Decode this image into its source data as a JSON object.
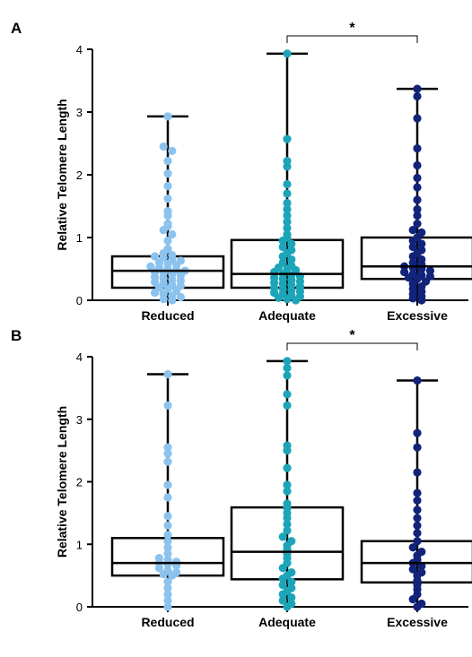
{
  "chart_data": [
    {
      "type": "box-dot",
      "panel_label": "A",
      "ylabel": "Relative Telomere Length",
      "ylim": [
        0,
        4
      ],
      "yticks": [
        "0",
        "1",
        "2",
        "3",
        "4"
      ],
      "categories": [
        "Reduced",
        "Adequate",
        "Excessive"
      ],
      "colors": [
        "#8cc3ee",
        "#1ca5b8",
        "#12237a"
      ],
      "boxes": [
        {
          "min": 0.0,
          "q1": 0.2,
          "median": 0.47,
          "q3": 0.7,
          "max": 2.93
        },
        {
          "min": 0.0,
          "q1": 0.2,
          "median": 0.42,
          "q3": 0.96,
          "max": 3.93
        },
        {
          "min": 0.0,
          "q1": 0.34,
          "median": 0.54,
          "q3": 1.0,
          "max": 3.37
        }
      ],
      "points": [
        [
          2.93,
          2.45,
          2.38,
          2.22,
          2.02,
          1.82,
          1.62,
          1.42,
          1.35,
          1.22,
          1.18,
          1.12,
          1.05,
          0.95,
          0.82,
          0.75,
          0.72,
          0.7,
          0.68,
          0.65,
          0.63,
          0.6,
          0.58,
          0.56,
          0.54,
          0.52,
          0.5,
          0.48,
          0.47,
          0.45,
          0.43,
          0.41,
          0.39,
          0.37,
          0.35,
          0.33,
          0.31,
          0.29,
          0.27,
          0.25,
          0.23,
          0.2,
          0.18,
          0.15,
          0.12,
          0.1,
          0.07,
          0.05,
          0.02,
          0.0
        ],
        [
          3.93,
          2.57,
          2.22,
          2.13,
          1.85,
          1.7,
          1.55,
          1.45,
          1.35,
          1.25,
          1.15,
          1.05,
          1.0,
          0.95,
          0.9,
          0.85,
          0.8,
          0.75,
          0.7,
          0.65,
          0.6,
          0.55,
          0.52,
          0.5,
          0.48,
          0.45,
          0.42,
          0.4,
          0.38,
          0.36,
          0.34,
          0.32,
          0.3,
          0.28,
          0.26,
          0.24,
          0.22,
          0.2,
          0.18,
          0.16,
          0.14,
          0.12,
          0.1,
          0.08,
          0.06,
          0.04,
          0.02,
          0.0
        ],
        [
          3.37,
          3.25,
          2.9,
          2.42,
          2.15,
          1.95,
          1.8,
          1.6,
          1.45,
          1.35,
          1.22,
          1.12,
          1.08,
          1.0,
          0.95,
          0.9,
          0.85,
          0.8,
          0.75,
          0.7,
          0.65,
          0.6,
          0.57,
          0.54,
          0.52,
          0.5,
          0.47,
          0.45,
          0.42,
          0.4,
          0.38,
          0.36,
          0.34,
          0.3,
          0.26,
          0.22,
          0.18,
          0.14,
          0.1,
          0.06,
          0.03,
          0.0
        ]
      ],
      "significance": {
        "from": 1,
        "to": 2,
        "label": "*"
      }
    },
    {
      "type": "box-dot",
      "panel_label": "B",
      "ylabel": "Relative Telomere Length",
      "ylim": [
        0,
        4
      ],
      "yticks": [
        "0",
        "1",
        "2",
        "3",
        "4"
      ],
      "categories": [
        "Reduced",
        "Adequate",
        "Excessive"
      ],
      "colors": [
        "#8cc3ee",
        "#1ca5b8",
        "#12237a"
      ],
      "boxes": [
        {
          "min": 0.0,
          "q1": 0.5,
          "median": 0.7,
          "q3": 1.1,
          "max": 3.72
        },
        {
          "min": 0.0,
          "q1": 0.44,
          "median": 0.88,
          "q3": 1.59,
          "max": 3.93
        },
        {
          "min": 0.0,
          "q1": 0.39,
          "median": 0.7,
          "q3": 1.05,
          "max": 3.62
        }
      ],
      "points": [
        [
          3.72,
          3.22,
          2.55,
          2.45,
          2.32,
          1.95,
          1.75,
          1.45,
          1.3,
          1.15,
          1.05,
          0.95,
          0.85,
          0.78,
          0.75,
          0.72,
          0.7,
          0.68,
          0.66,
          0.62,
          0.58,
          0.55,
          0.52,
          0.5,
          0.4,
          0.3,
          0.2,
          0.1,
          0.0
        ],
        [
          3.93,
          3.82,
          3.7,
          3.4,
          3.22,
          2.58,
          2.5,
          2.22,
          1.95,
          1.85,
          1.65,
          1.58,
          1.5,
          1.42,
          1.32,
          1.22,
          1.12,
          1.05,
          0.98,
          0.92,
          0.85,
          0.78,
          0.7,
          0.62,
          0.55,
          0.5,
          0.45,
          0.4,
          0.35,
          0.3,
          0.25,
          0.2,
          0.15,
          0.1,
          0.05,
          0.0
        ],
        [
          3.62,
          2.78,
          2.55,
          2.15,
          1.82,
          1.7,
          1.55,
          1.42,
          1.3,
          1.18,
          1.05,
          0.95,
          0.88,
          0.82,
          0.75,
          0.7,
          0.65,
          0.6,
          0.55,
          0.5,
          0.42,
          0.35,
          0.28,
          0.2,
          0.12,
          0.05,
          0.0
        ]
      ],
      "significance": {
        "from": 1,
        "to": 2,
        "label": "*"
      }
    }
  ]
}
